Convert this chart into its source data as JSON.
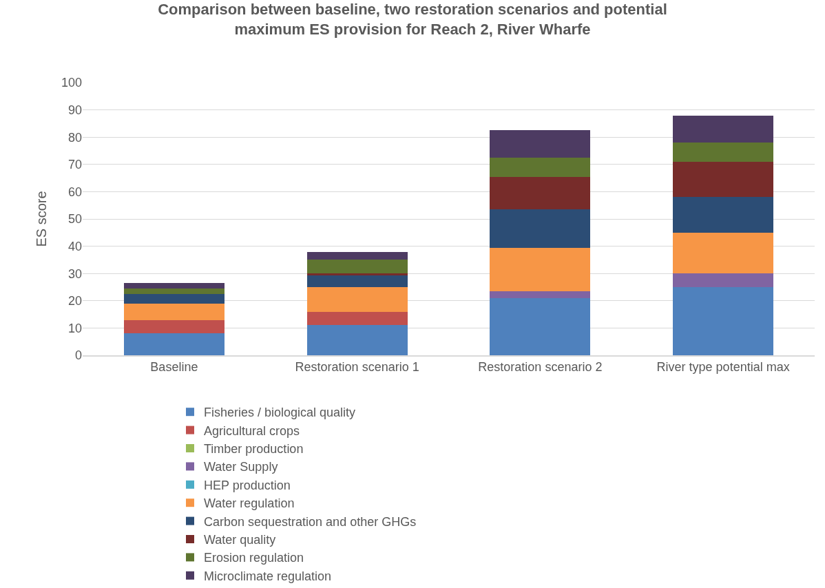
{
  "chart_data": {
    "type": "bar",
    "stacked": true,
    "title": "Comparison between baseline, two restoration scenarios and potential maximum ES provision for Reach 2, River Wharfe",
    "ylabel": "ES score",
    "categories": [
      "Baseline",
      "Restoration scenario 1",
      "Restoration scenario 2",
      "River type potential max"
    ],
    "series": [
      {
        "name": "Fisheries / biological quality",
        "color": "#4f81bd",
        "values": [
          8,
          11,
          21,
          25
        ]
      },
      {
        "name": "Agricultural crops",
        "color": "#c0504d",
        "values": [
          5,
          5,
          0,
          0
        ]
      },
      {
        "name": "Timber production",
        "color": "#9bbb59",
        "values": [
          0,
          0,
          0,
          0
        ]
      },
      {
        "name": "Water Supply",
        "color": "#8064a2",
        "values": [
          0,
          0,
          2.5,
          5
        ]
      },
      {
        "name": "HEP production",
        "color": "#4bacc6",
        "values": [
          0,
          0,
          0,
          0
        ]
      },
      {
        "name": "Water regulation",
        "color": "#f79646",
        "values": [
          6,
          9,
          16,
          15
        ]
      },
      {
        "name": "Carbon sequestration and other GHGs",
        "color": "#2c4d75",
        "values": [
          3.5,
          4.5,
          14,
          13
        ]
      },
      {
        "name": "Water quality",
        "color": "#772c2a",
        "values": [
          0,
          0.5,
          12,
          13
        ]
      },
      {
        "name": "Erosion regulation",
        "color": "#5f7530",
        "values": [
          2,
          5,
          7,
          7
        ]
      },
      {
        "name": "Microclimate regulation",
        "color": "#4d3b62",
        "values": [
          2,
          3,
          10,
          10
        ]
      }
    ],
    "ylim": [
      0,
      100
    ],
    "yticks": [
      0,
      10,
      20,
      30,
      40,
      50,
      60,
      70,
      80,
      90,
      100
    ],
    "grid": "y",
    "legend": "bottom"
  }
}
